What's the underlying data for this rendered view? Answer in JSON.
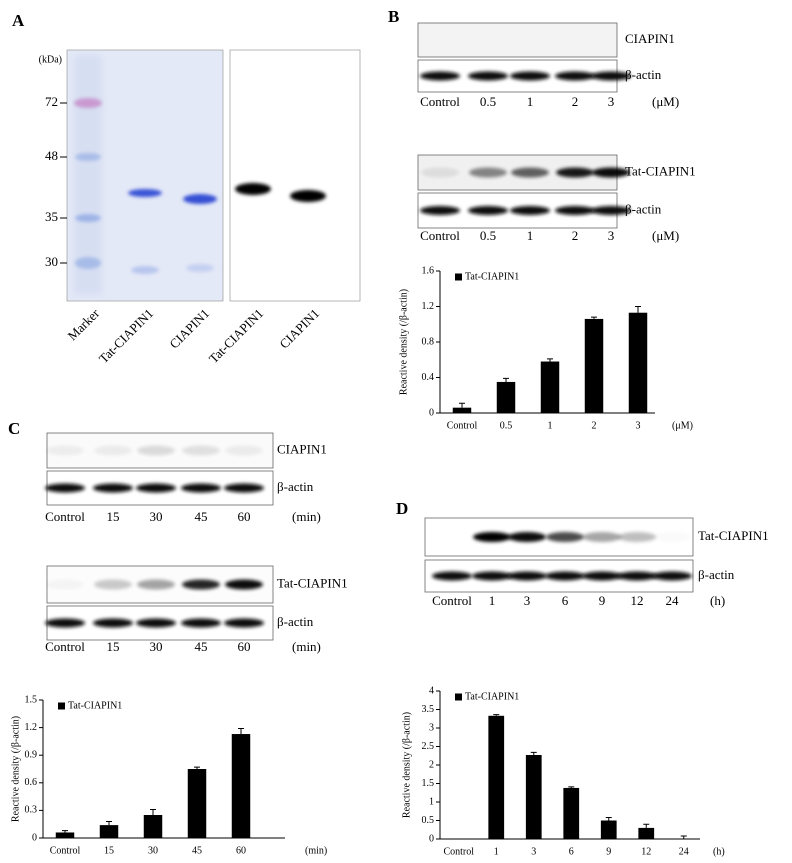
{
  "panels": {
    "a": {
      "label": "A",
      "kda_unit": "(kDa)",
      "kda": [
        72,
        48,
        35,
        30
      ],
      "lanes": [
        "Marker",
        "Tat-CIAPIN1",
        "CIAPIN1",
        "Tat-CIAPIN1",
        "CIAPIN1"
      ]
    },
    "b": {
      "label": "B",
      "blots": [
        {
          "bands": [
            "CIAPIN1",
            "β-actin"
          ],
          "lanes": [
            "Control",
            "0.5",
            "1",
            "2",
            "3"
          ],
          "unit": "(μM)"
        },
        {
          "bands": [
            "Tat-CIAPIN1",
            "β-actin"
          ],
          "lanes": [
            "Control",
            "0.5",
            "1",
            "2",
            "3"
          ],
          "unit": "(μM)"
        }
      ]
    },
    "c": {
      "label": "C",
      "blots": [
        {
          "bands": [
            "CIAPIN1",
            "β-actin"
          ],
          "lanes": [
            "Control",
            "15",
            "30",
            "45",
            "60"
          ],
          "unit": "(min)"
        },
        {
          "bands": [
            "Tat-CIAPIN1",
            "β-actin"
          ],
          "lanes": [
            "Control",
            "15",
            "30",
            "45",
            "60"
          ],
          "unit": "(min)"
        }
      ]
    },
    "d": {
      "label": "D",
      "blots": [
        {
          "bands": [
            "Tat-CIAPIN1",
            "β-actin"
          ],
          "lanes": [
            "Control",
            "1",
            "3",
            "6",
            "9",
            "12",
            "24"
          ],
          "unit": "(h)"
        }
      ]
    }
  },
  "chart_data": [
    {
      "type": "bar",
      "y_label": "Reactive density (/β-actin)",
      "categories": [
        "Control",
        "0.5",
        "1",
        "2",
        "3"
      ],
      "x_unit": "(μM)",
      "series": [
        {
          "name": "Tat-CIAPIN1",
          "color": "#000000",
          "values": [
            0.06,
            0.35,
            0.58,
            1.06,
            1.13
          ],
          "errors": [
            0.05,
            0.04,
            0.03,
            0.02,
            0.07
          ]
        }
      ],
      "ylim": [
        0,
        1.6
      ],
      "yticks": [
        0,
        0.4,
        0.8,
        1.2,
        1.6
      ],
      "legend": "upper left"
    },
    {
      "type": "bar",
      "y_label": "Reactive density (/β-actin)",
      "categories": [
        "Control",
        "15",
        "30",
        "45",
        "60"
      ],
      "x_unit": "(min)",
      "series": [
        {
          "name": "Tat-CIAPIN1",
          "color": "#000000",
          "values": [
            0.06,
            0.14,
            0.25,
            0.75,
            1.13
          ],
          "errors": [
            0.02,
            0.04,
            0.06,
            0.02,
            0.06
          ]
        }
      ],
      "ylim": [
        0,
        1.5
      ],
      "yticks": [
        0,
        0.3,
        0.6,
        0.9,
        1.2,
        1.5
      ],
      "legend": "upper left"
    },
    {
      "type": "bar",
      "y_label": "Reactive density (/β-actin)",
      "categories": [
        "Control",
        "1",
        "3",
        "6",
        "9",
        "12",
        "24"
      ],
      "x_unit": "(h)",
      "series": [
        {
          "name": "Tat-CIAPIN1",
          "color": "#000000",
          "values": [
            0,
            3.33,
            2.27,
            1.38,
            0.5,
            0.3,
            0
          ],
          "errors": [
            0,
            0.03,
            0.07,
            0.03,
            0.08,
            0.1,
            0.08
          ]
        }
      ],
      "ylim": [
        0,
        4
      ],
      "yticks": [
        0,
        0.5,
        1,
        1.5,
        2,
        2.5,
        3,
        3.5,
        4
      ],
      "legend": "upper left"
    }
  ]
}
